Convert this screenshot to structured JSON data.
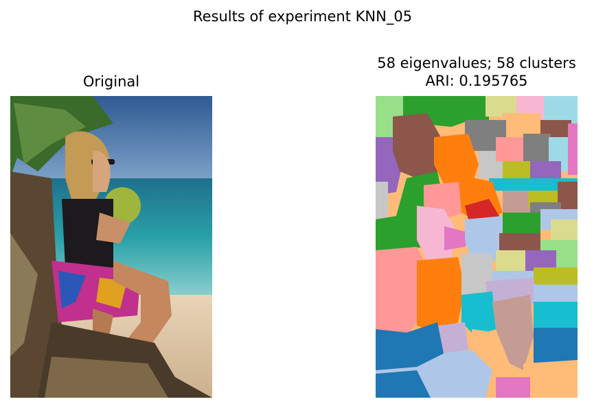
{
  "figure": {
    "suptitle": "Results of experiment KNN_05"
  },
  "chart_data": [
    {
      "type": "image",
      "title": "Original",
      "image_description_label": "photo"
    },
    {
      "type": "heatmap",
      "title_line1": "58 eigenvalues; 58 clusters",
      "title_line2": "ARI: 0.195765",
      "n_eigenvalues": 58,
      "n_clusters": 58,
      "ari": 0.195765,
      "colormap": "tab20",
      "colors": {
        "blue": "#1f77b4",
        "light_blue": "#aec7e8",
        "orange": "#ff7f0e",
        "light_orange": "#ffbb78",
        "green": "#2ca02c",
        "light_green": "#98df8a",
        "red": "#d62728",
        "salmon": "#ff9896",
        "purple": "#9467bd",
        "lavender": "#c5b0d5",
        "brown": "#8c564b",
        "tan": "#c49c94",
        "pink": "#e377c2",
        "light_pink": "#f7b6d2",
        "gray": "#7f7f7f",
        "light_gray": "#c7c7c7",
        "olive": "#bcbd22",
        "khaki": "#dbdb8d",
        "cyan": "#17becf",
        "light_cyan": "#9edae5"
      }
    }
  ]
}
